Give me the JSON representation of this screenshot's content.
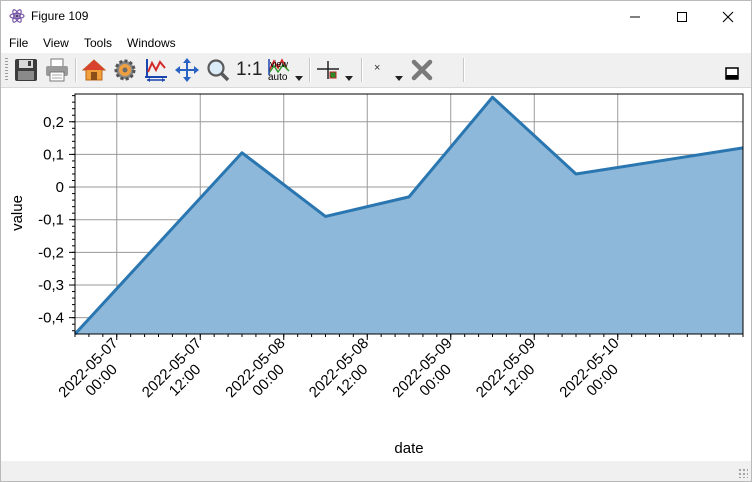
{
  "window": {
    "title": "Figure 109"
  },
  "menu": [
    "File",
    "View",
    "Tools",
    "Windows"
  ],
  "toolbar": {
    "one_to_one": "1:1",
    "view_auto_top": "view",
    "view_auto_bottom": "auto",
    "marker_label": "×"
  },
  "chart_data": {
    "type": "area",
    "xlabel": "date",
    "ylabel": "value",
    "x": [
      "2022-05-06 18:00",
      "2022-05-07 18:00",
      "2022-05-08 06:00",
      "2022-05-08 18:00",
      "2022-05-09 06:00",
      "2022-05-09 18:00",
      "2022-05-10 06:00",
      "2022-05-10 18:00"
    ],
    "y": [
      -0.45,
      0.105,
      -0.09,
      -0.03,
      0.275,
      0.04,
      0.08,
      0.12
    ],
    "baseline": -0.45,
    "xlim": [
      "2022-05-06 18:00",
      "2022-05-10 18:00"
    ],
    "ylim": [
      -0.45,
      0.285
    ],
    "yticks": [
      -0.4,
      -0.3,
      -0.2,
      -0.1,
      0,
      0.1,
      0.2
    ],
    "ytick_labels": [
      "-0,4",
      "-0,3",
      "-0,2",
      "-0,1",
      "0",
      "0,1",
      "0,2"
    ],
    "xticks": [
      "2022-05-07 00:00",
      "2022-05-07 12:00",
      "2022-05-08 00:00",
      "2022-05-08 12:00",
      "2022-05-09 00:00",
      "2022-05-09 12:00",
      "2022-05-10 00:00"
    ],
    "xtick_labels": [
      [
        "2022-05-07",
        "00:00"
      ],
      [
        "2022-05-07",
        "12:00"
      ],
      [
        "2022-05-08",
        "00:00"
      ],
      [
        "2022-05-08",
        "12:00"
      ],
      [
        "2022-05-09",
        "00:00"
      ],
      [
        "2022-05-09",
        "12:00"
      ],
      [
        "2022-05-10",
        "00:00"
      ]
    ],
    "grid": true,
    "colors": {
      "line": "#2a76b0",
      "fill": "#8db8d9",
      "grid": "#9a9a9a"
    }
  }
}
